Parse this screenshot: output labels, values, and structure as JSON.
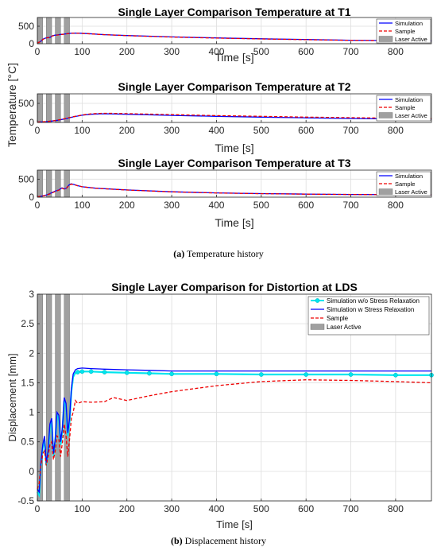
{
  "figure": {
    "top_ylabel": "Temperature [°C]",
    "caption_a_label": "(a)",
    "caption_a_text": "Temperature history",
    "caption_b_label": "(b)",
    "caption_b_text": "Displacement history"
  },
  "colors": {
    "simulation": "#0000ff",
    "simulation_wo": "#00e5ee",
    "sample": "#ee0000",
    "laser": "#a0a0a0",
    "grid": "#dedede",
    "axis": "#262626"
  },
  "chart_data": [
    {
      "id": "t1",
      "type": "line",
      "title": "Single Layer Comparison Temperature at T1",
      "xlabel": "Time [s]",
      "ylabel": "",
      "xlim": [
        0,
        880
      ],
      "ylim": [
        0,
        750
      ],
      "xticks": [
        0,
        100,
        200,
        300,
        400,
        500,
        600,
        700,
        800
      ],
      "yticks": [
        0,
        500
      ],
      "grid": true,
      "legend_position": "top-right",
      "laser_active": [
        [
          1,
          12
        ],
        [
          20,
          32
        ],
        [
          40,
          52
        ],
        [
          60,
          72
        ]
      ],
      "series": [
        {
          "name": "Simulation",
          "style": "solid",
          "x": [
            0,
            8,
            12,
            16,
            22,
            28,
            34,
            40,
            46,
            52,
            60,
            68,
            76,
            85,
            95,
            110,
            150,
            200,
            300,
            400,
            500,
            600,
            700,
            800,
            880
          ],
          "values": [
            20,
            70,
            130,
            150,
            175,
            180,
            230,
            245,
            255,
            265,
            275,
            290,
            300,
            305,
            300,
            290,
            260,
            235,
            195,
            165,
            140,
            120,
            100,
            90,
            80
          ]
        },
        {
          "name": "Sample",
          "style": "dashed",
          "x": [
            0,
            8,
            12,
            16,
            22,
            28,
            34,
            40,
            46,
            52,
            60,
            68,
            76,
            85,
            95,
            110,
            150,
            200,
            300,
            400,
            500,
            600,
            700,
            800,
            880
          ],
          "values": [
            20,
            65,
            120,
            145,
            170,
            178,
            225,
            240,
            250,
            262,
            272,
            286,
            298,
            302,
            298,
            288,
            258,
            232,
            192,
            162,
            137,
            117,
            98,
            87,
            77
          ]
        }
      ]
    },
    {
      "id": "t2",
      "type": "line",
      "title": "Single Layer Comparison Temperature at T2",
      "xlabel": "Time [s]",
      "ylabel": "",
      "xlim": [
        0,
        880
      ],
      "ylim": [
        0,
        750
      ],
      "xticks": [
        0,
        100,
        200,
        300,
        400,
        500,
        600,
        700,
        800
      ],
      "yticks": [
        0,
        500
      ],
      "grid": true,
      "legend_position": "top-right",
      "laser_active": [
        [
          1,
          12
        ],
        [
          20,
          32
        ],
        [
          40,
          52
        ],
        [
          60,
          72
        ]
      ],
      "series": [
        {
          "name": "Simulation",
          "style": "solid",
          "x": [
            0,
            20,
            40,
            60,
            80,
            100,
            120,
            140,
            160,
            200,
            300,
            400,
            500,
            600,
            700,
            800,
            880
          ],
          "values": [
            10,
            20,
            45,
            90,
            145,
            190,
            215,
            225,
            225,
            215,
            185,
            160,
            140,
            120,
            105,
            92,
            85
          ]
        },
        {
          "name": "Sample",
          "style": "dashed",
          "x": [
            0,
            20,
            40,
            60,
            80,
            100,
            120,
            140,
            160,
            200,
            300,
            400,
            500,
            600,
            700,
            800,
            880
          ],
          "values": [
            10,
            22,
            48,
            95,
            150,
            195,
            225,
            238,
            240,
            232,
            205,
            180,
            160,
            140,
            125,
            110,
            100
          ]
        }
      ]
    },
    {
      "id": "t3",
      "type": "line",
      "title": "Single Layer Comparison Temperature at T3",
      "xlabel": "Time [s]",
      "ylabel": "",
      "xlim": [
        0,
        880
      ],
      "ylim": [
        0,
        750
      ],
      "xticks": [
        0,
        100,
        200,
        300,
        400,
        500,
        600,
        700,
        800
      ],
      "yticks": [
        0,
        500
      ],
      "grid": true,
      "legend_position": "top-right",
      "laser_active": [
        [
          1,
          12
        ],
        [
          20,
          32
        ],
        [
          40,
          52
        ],
        [
          60,
          72
        ]
      ],
      "series": [
        {
          "name": "Simulation",
          "style": "solid",
          "x": [
            0,
            10,
            20,
            30,
            40,
            48,
            55,
            60,
            65,
            70,
            75,
            80,
            90,
            100,
            130,
            200,
            300,
            400,
            500,
            600,
            700,
            800,
            880
          ],
          "values": [
            10,
            30,
            60,
            110,
            170,
            200,
            260,
            230,
            250,
            330,
            370,
            360,
            320,
            290,
            250,
            200,
            150,
            120,
            100,
            85,
            75,
            70,
            65
          ]
        },
        {
          "name": "Sample",
          "style": "dashed",
          "x": [
            0,
            10,
            20,
            30,
            40,
            48,
            55,
            60,
            65,
            70,
            75,
            80,
            90,
            100,
            130,
            200,
            300,
            400,
            500,
            600,
            700,
            800,
            880
          ],
          "values": [
            10,
            28,
            55,
            100,
            160,
            195,
            250,
            225,
            245,
            320,
            360,
            355,
            318,
            288,
            248,
            198,
            148,
            118,
            98,
            84,
            74,
            69,
            64
          ]
        }
      ]
    },
    {
      "id": "lds",
      "type": "line",
      "title": "Single Layer Comparison for Distortion at LDS",
      "xlabel": "Time [s]",
      "ylabel": "Displacement [mm]",
      "xlim": [
        0,
        880
      ],
      "ylim": [
        -0.5,
        3
      ],
      "xticks": [
        0,
        100,
        200,
        300,
        400,
        500,
        600,
        700,
        800
      ],
      "yticks": [
        -0.5,
        0,
        0.5,
        1,
        1.5,
        2,
        2.5,
        3
      ],
      "grid": true,
      "legend_position": "top-right",
      "laser_active": [
        [
          1,
          12
        ],
        [
          20,
          32
        ],
        [
          40,
          52
        ],
        [
          60,
          72
        ]
      ],
      "series": [
        {
          "name": "Simulation w/o Stress Relaxation",
          "style": "solid-markers",
          "x": [
            0,
            4,
            8,
            12,
            16,
            20,
            24,
            28,
            32,
            36,
            40,
            44,
            48,
            52,
            56,
            60,
            64,
            68,
            72,
            76,
            80,
            85,
            90,
            100,
            120,
            150,
            200,
            250,
            300,
            400,
            500,
            600,
            700,
            800,
            880
          ],
          "values": [
            -0.35,
            -0.4,
            0.1,
            0.4,
            0.55,
            0.1,
            0.3,
            0.75,
            0.85,
            0.25,
            0.5,
            0.95,
            0.9,
            0.45,
            0.7,
            1.2,
            1.1,
            0.6,
            0.85,
            1.35,
            1.6,
            1.67,
            1.68,
            1.69,
            1.69,
            1.68,
            1.67,
            1.66,
            1.65,
            1.65,
            1.64,
            1.64,
            1.64,
            1.63,
            1.63
          ]
        },
        {
          "name": "Simulation w Stress Relaxation",
          "style": "solid",
          "x": [
            0,
            4,
            8,
            12,
            16,
            20,
            24,
            28,
            32,
            36,
            40,
            44,
            48,
            52,
            56,
            60,
            64,
            68,
            72,
            76,
            80,
            85,
            90,
            100,
            120,
            150,
            200,
            250,
            300,
            400,
            500,
            600,
            700,
            800,
            880
          ],
          "values": [
            -0.3,
            -0.35,
            0.15,
            0.45,
            0.6,
            0.15,
            0.35,
            0.8,
            0.9,
            0.3,
            0.55,
            1.0,
            0.95,
            0.5,
            0.75,
            1.25,
            1.15,
            0.65,
            0.9,
            1.4,
            1.65,
            1.72,
            1.74,
            1.75,
            1.74,
            1.73,
            1.72,
            1.71,
            1.7,
            1.7,
            1.7,
            1.7,
            1.7,
            1.7,
            1.7
          ]
        },
        {
          "name": "Sample",
          "style": "dashed",
          "x": [
            0,
            4,
            8,
            12,
            16,
            20,
            24,
            28,
            32,
            36,
            40,
            44,
            48,
            52,
            56,
            60,
            64,
            68,
            72,
            76,
            80,
            85,
            90,
            100,
            120,
            150,
            170,
            200,
            250,
            300,
            400,
            500,
            600,
            700,
            800,
            880
          ],
          "values": [
            -0.3,
            -0.2,
            0.1,
            0.3,
            0.35,
            0.1,
            0.25,
            0.45,
            0.5,
            0.2,
            0.35,
            0.6,
            0.55,
            0.25,
            0.5,
            0.8,
            0.6,
            0.25,
            0.55,
            0.9,
            1.0,
            1.2,
            1.15,
            1.18,
            1.17,
            1.18,
            1.25,
            1.2,
            1.28,
            1.35,
            1.45,
            1.52,
            1.55,
            1.54,
            1.52,
            1.5
          ]
        },
        {
          "name": "Laser Active",
          "style": "patch"
        }
      ]
    }
  ]
}
